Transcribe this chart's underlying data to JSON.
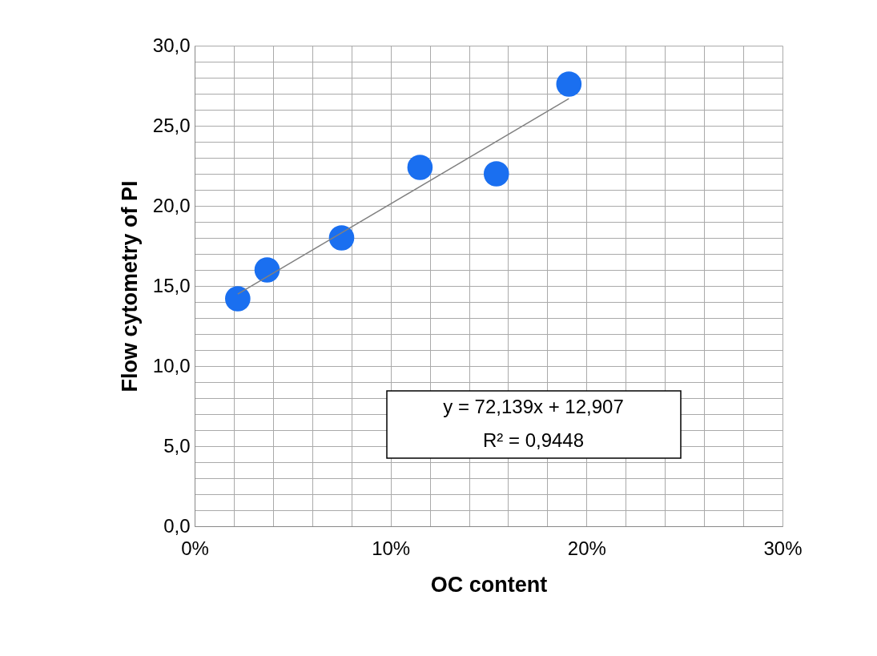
{
  "chart_data": {
    "type": "scatter",
    "xlabel": "OC content",
    "ylabel": "Flow cytometry of PI",
    "series": [
      {
        "color": "#1a6ff0",
        "marker": "circle",
        "x": [
          0.022,
          0.037,
          0.075,
          0.115,
          0.154,
          0.191
        ],
        "values": [
          14.2,
          16.0,
          18.0,
          22.4,
          22.0,
          27.6
        ]
      },
      {
        "type": "line",
        "color": "#808080",
        "x": [
          0.022,
          0.191
        ],
        "values": [
          14.49,
          26.69
        ]
      }
    ],
    "xlim": [
      0,
      0.3
    ],
    "xticks": [
      {
        "value": 0,
        "label": "0%"
      },
      {
        "value": 0.02,
        "label": null
      },
      {
        "value": 0.04,
        "label": null
      },
      {
        "value": 0.06,
        "label": null
      },
      {
        "value": 0.08,
        "label": null
      },
      {
        "value": 0.1,
        "label": "10%"
      },
      {
        "value": 0.12,
        "label": null
      },
      {
        "value": 0.14,
        "label": null
      },
      {
        "value": 0.16,
        "label": null
      },
      {
        "value": 0.18,
        "label": null
      },
      {
        "value": 0.2,
        "label": "20%"
      },
      {
        "value": 0.22,
        "label": null
      },
      {
        "value": 0.24,
        "label": null
      },
      {
        "value": 0.26,
        "label": null
      },
      {
        "value": 0.28,
        "label": null
      },
      {
        "value": 0.3,
        "label": "30%"
      }
    ],
    "ylim": [
      0,
      30
    ],
    "yticks": [
      {
        "value": 0,
        "label": "0,0"
      },
      {
        "value": 1,
        "label": null
      },
      {
        "value": 2,
        "label": null
      },
      {
        "value": 3,
        "label": null
      },
      {
        "value": 4,
        "label": null
      },
      {
        "value": 5,
        "label": "5,0"
      },
      {
        "value": 6,
        "label": null
      },
      {
        "value": 7,
        "label": null
      },
      {
        "value": 8,
        "label": null
      },
      {
        "value": 9,
        "label": null
      },
      {
        "value": 10,
        "label": "10,0"
      },
      {
        "value": 11,
        "label": null
      },
      {
        "value": 12,
        "label": null
      },
      {
        "value": 13,
        "label": null
      },
      {
        "value": 14,
        "label": null
      },
      {
        "value": 15,
        "label": "15,0"
      },
      {
        "value": 16,
        "label": null
      },
      {
        "value": 17,
        "label": null
      },
      {
        "value": 18,
        "label": null
      },
      {
        "value": 19,
        "label": null
      },
      {
        "value": 20,
        "label": "20,0"
      },
      {
        "value": 21,
        "label": null
      },
      {
        "value": 22,
        "label": null
      },
      {
        "value": 23,
        "label": null
      },
      {
        "value": 24,
        "label": null
      },
      {
        "value": 25,
        "label": "25,0"
      },
      {
        "value": 26,
        "label": null
      },
      {
        "value": 27,
        "label": null
      },
      {
        "value": 28,
        "label": null
      },
      {
        "value": 29,
        "label": null
      },
      {
        "value": 30,
        "label": "30,0"
      }
    ],
    "grid": true,
    "annotations": [
      "y = 72,139x + 12,907",
      "R² = 0,9448"
    ]
  }
}
